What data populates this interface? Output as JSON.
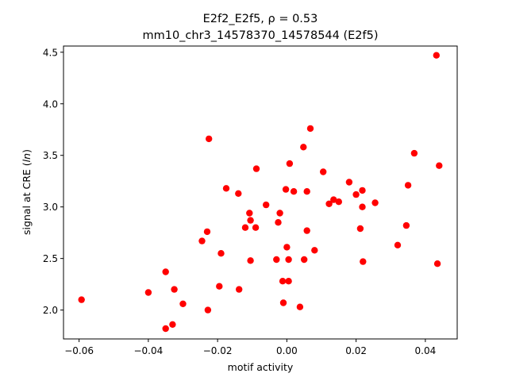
{
  "chart_data": {
    "type": "scatter",
    "title": "E2f2_E2f5, ρ = 0.53",
    "subtitle": "mm10_chr3_14578370_14578544 (E2f5)",
    "xlabel": "motif activity",
    "ylabel": "signal at CRE (ln)",
    "xlim": [
      -0.0645,
      0.0492
    ],
    "ylim": [
      1.72,
      4.56
    ],
    "xticks": [
      "−0.06",
      "−0.04",
      "−0.02",
      "0.00",
      "0.02",
      "0.04"
    ],
    "xtick_values": [
      -0.06,
      -0.04,
      -0.02,
      0.0,
      0.02,
      0.04
    ],
    "yticks": [
      "2.0",
      "2.5",
      "3.0",
      "3.5",
      "4.0",
      "4.5"
    ],
    "ytick_values": [
      2.0,
      2.5,
      3.0,
      3.5,
      4.0,
      4.5
    ],
    "grid": false,
    "marker_color": "#ff0000",
    "series": [
      {
        "points": [
          [
            -0.0593,
            2.1
          ],
          [
            -0.04,
            2.17
          ],
          [
            -0.035,
            2.37
          ],
          [
            -0.035,
            1.82
          ],
          [
            -0.033,
            1.86
          ],
          [
            -0.0325,
            2.2
          ],
          [
            -0.03,
            2.06
          ],
          [
            -0.0245,
            2.67
          ],
          [
            -0.023,
            2.76
          ],
          [
            -0.0228,
            2.0
          ],
          [
            -0.0225,
            3.66
          ],
          [
            -0.0195,
            2.23
          ],
          [
            -0.019,
            2.55
          ],
          [
            -0.0175,
            3.18
          ],
          [
            -0.014,
            3.13
          ],
          [
            -0.0138,
            2.2
          ],
          [
            -0.012,
            2.8
          ],
          [
            -0.0108,
            2.94
          ],
          [
            -0.0105,
            2.87
          ],
          [
            -0.0105,
            2.48
          ],
          [
            -0.009,
            2.8
          ],
          [
            -0.0088,
            3.37
          ],
          [
            -0.006,
            3.02
          ],
          [
            -0.003,
            2.49
          ],
          [
            -0.0025,
            2.85
          ],
          [
            -0.002,
            2.94
          ],
          [
            -0.0012,
            2.28
          ],
          [
            -0.001,
            2.07
          ],
          [
            -0.0003,
            3.17
          ],
          [
            0.0,
            2.61
          ],
          [
            0.0005,
            2.28
          ],
          [
            0.0005,
            2.49
          ],
          [
            0.0008,
            3.42
          ],
          [
            0.002,
            3.15
          ],
          [
            0.0038,
            2.03
          ],
          [
            0.0048,
            3.58
          ],
          [
            0.005,
            2.49
          ],
          [
            0.0058,
            3.15
          ],
          [
            0.0058,
            2.77
          ],
          [
            0.0068,
            3.76
          ],
          [
            0.008,
            2.58
          ],
          [
            0.0105,
            3.34
          ],
          [
            0.0122,
            3.03
          ],
          [
            0.0135,
            3.07
          ],
          [
            0.015,
            3.05
          ],
          [
            0.018,
            3.24
          ],
          [
            0.02,
            3.12
          ],
          [
            0.0212,
            2.79
          ],
          [
            0.0218,
            3.16
          ],
          [
            0.0218,
            3.0
          ],
          [
            0.022,
            2.47
          ],
          [
            0.0255,
            3.04
          ],
          [
            0.032,
            2.63
          ],
          [
            0.0345,
            2.82
          ],
          [
            0.035,
            3.21
          ],
          [
            0.0368,
            3.52
          ],
          [
            0.0432,
            4.47
          ],
          [
            0.0435,
            2.45
          ],
          [
            0.044,
            3.4
          ]
        ]
      }
    ]
  }
}
